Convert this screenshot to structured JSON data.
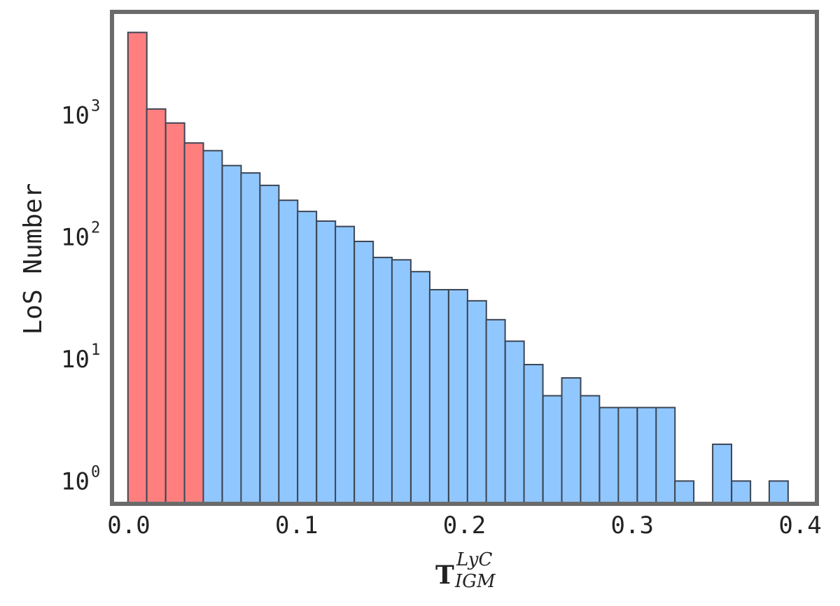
{
  "chart_data": {
    "type": "bar",
    "title": "",
    "xlabel": "T",
    "xlabel_superscript": "LyC",
    "xlabel_subscript": "IGM",
    "ylabel": "LoS Number",
    "y_scale": "log",
    "xlim": [
      -0.01,
      0.41
    ],
    "ylim": [
      0.65,
      7000
    ],
    "grid": false,
    "x_ticks": [
      "0.0",
      "0.1",
      "0.2",
      "0.3",
      "0.4"
    ],
    "x_tick_values": [
      0.0,
      0.1,
      0.2,
      0.3,
      0.4
    ],
    "y_ticks": [
      {
        "base": "10",
        "exp": "0",
        "value": 1
      },
      {
        "base": "10",
        "exp": "1",
        "value": 10
      },
      {
        "base": "10",
        "exp": "2",
        "value": 100
      },
      {
        "base": "10",
        "exp": "3",
        "value": 1000
      }
    ],
    "bin_width": 0.01124,
    "series": [
      {
        "color": "#ff7f7f",
        "bins": [
          {
            "x0": -0.0005,
            "value": 4750
          },
          {
            "x0": 0.0107,
            "value": 1120
          },
          {
            "x0": 0.022,
            "value": 860
          },
          {
            "x0": 0.0332,
            "value": 590
          }
        ]
      },
      {
        "color": "#91c7ff",
        "bins": [
          {
            "x0": 0.0444,
            "value": 510
          },
          {
            "x0": 0.0557,
            "value": 385
          },
          {
            "x0": 0.0669,
            "value": 335
          },
          {
            "x0": 0.0782,
            "value": 265
          },
          {
            "x0": 0.0894,
            "value": 200
          },
          {
            "x0": 0.1006,
            "value": 162
          },
          {
            "x0": 0.1119,
            "value": 135
          },
          {
            "x0": 0.1231,
            "value": 122
          },
          {
            "x0": 0.1344,
            "value": 92
          },
          {
            "x0": 0.1456,
            "value": 68
          },
          {
            "x0": 0.1568,
            "value": 65
          },
          {
            "x0": 0.1681,
            "value": 52
          },
          {
            "x0": 0.1793,
            "value": 37
          },
          {
            "x0": 0.1906,
            "value": 37
          },
          {
            "x0": 0.2018,
            "value": 30
          },
          {
            "x0": 0.213,
            "value": 21
          },
          {
            "x0": 0.2243,
            "value": 14
          },
          {
            "x0": 0.2355,
            "value": 9
          },
          {
            "x0": 0.2468,
            "value": 5
          },
          {
            "x0": 0.258,
            "value": 7
          },
          {
            "x0": 0.2692,
            "value": 5
          },
          {
            "x0": 0.2805,
            "value": 4
          },
          {
            "x0": 0.2917,
            "value": 4
          },
          {
            "x0": 0.303,
            "value": 4
          },
          {
            "x0": 0.3142,
            "value": 4
          },
          {
            "x0": 0.3254,
            "value": 1
          },
          {
            "x0": 0.3479,
            "value": 2
          },
          {
            "x0": 0.3592,
            "value": 1
          },
          {
            "x0": 0.3816,
            "value": 1
          }
        ]
      }
    ]
  },
  "colors": {
    "frame": "#6b6b6b",
    "edge": "#3c4654"
  }
}
